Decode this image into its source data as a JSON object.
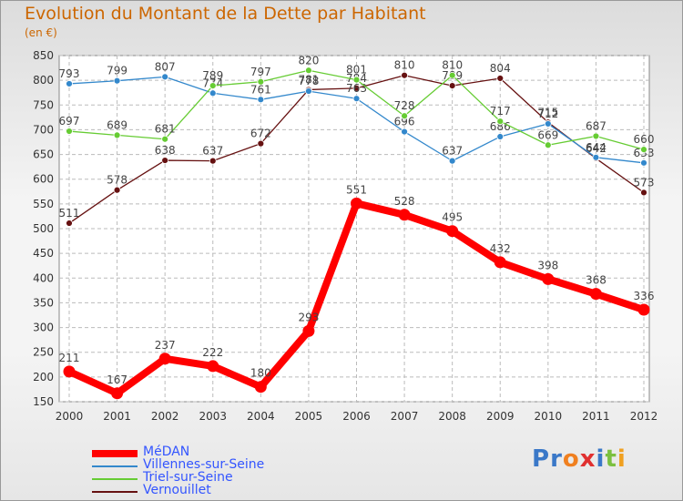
{
  "title": "Evolution du Montant de la Dette par Habitant",
  "unit": "(en €)",
  "chart_data": {
    "type": "line",
    "x": [
      "2000",
      "2001",
      "2002",
      "2003",
      "2004",
      "2005",
      "2006",
      "2007",
      "2008",
      "2009",
      "2010",
      "2011",
      "2012"
    ],
    "y_ticks": [
      150,
      200,
      250,
      300,
      350,
      400,
      450,
      500,
      550,
      600,
      650,
      700,
      750,
      800,
      850
    ],
    "ylim": [
      150,
      850
    ],
    "grid": true,
    "legend_position": "bottom-left",
    "series": [
      {
        "name": "MéDAN",
        "color": "#ff0000",
        "values": [
          211,
          167,
          237,
          222,
          180,
          293,
          551,
          528,
          495,
          432,
          398,
          368,
          336
        ]
      },
      {
        "name": "Villennes-sur-Seine",
        "color": "#3388cc",
        "values": [
          793,
          799,
          807,
          774,
          761,
          778,
          763,
          696,
          637,
          686,
          712,
          644,
          633
        ]
      },
      {
        "name": "Triel-sur-Seine",
        "color": "#66cc33",
        "values": [
          697,
          689,
          681,
          789,
          797,
          820,
          801,
          728,
          810,
          717,
          669,
          687,
          660
        ]
      },
      {
        "name": "Vernouillet",
        "color": "#661111",
        "values": [
          511,
          578,
          638,
          637,
          672,
          781,
          784,
          810,
          789,
          804,
          715,
          642,
          573
        ]
      }
    ]
  },
  "logo": {
    "letters": [
      "P",
      "r",
      "o",
      "x",
      "i",
      "t",
      "i"
    ]
  }
}
